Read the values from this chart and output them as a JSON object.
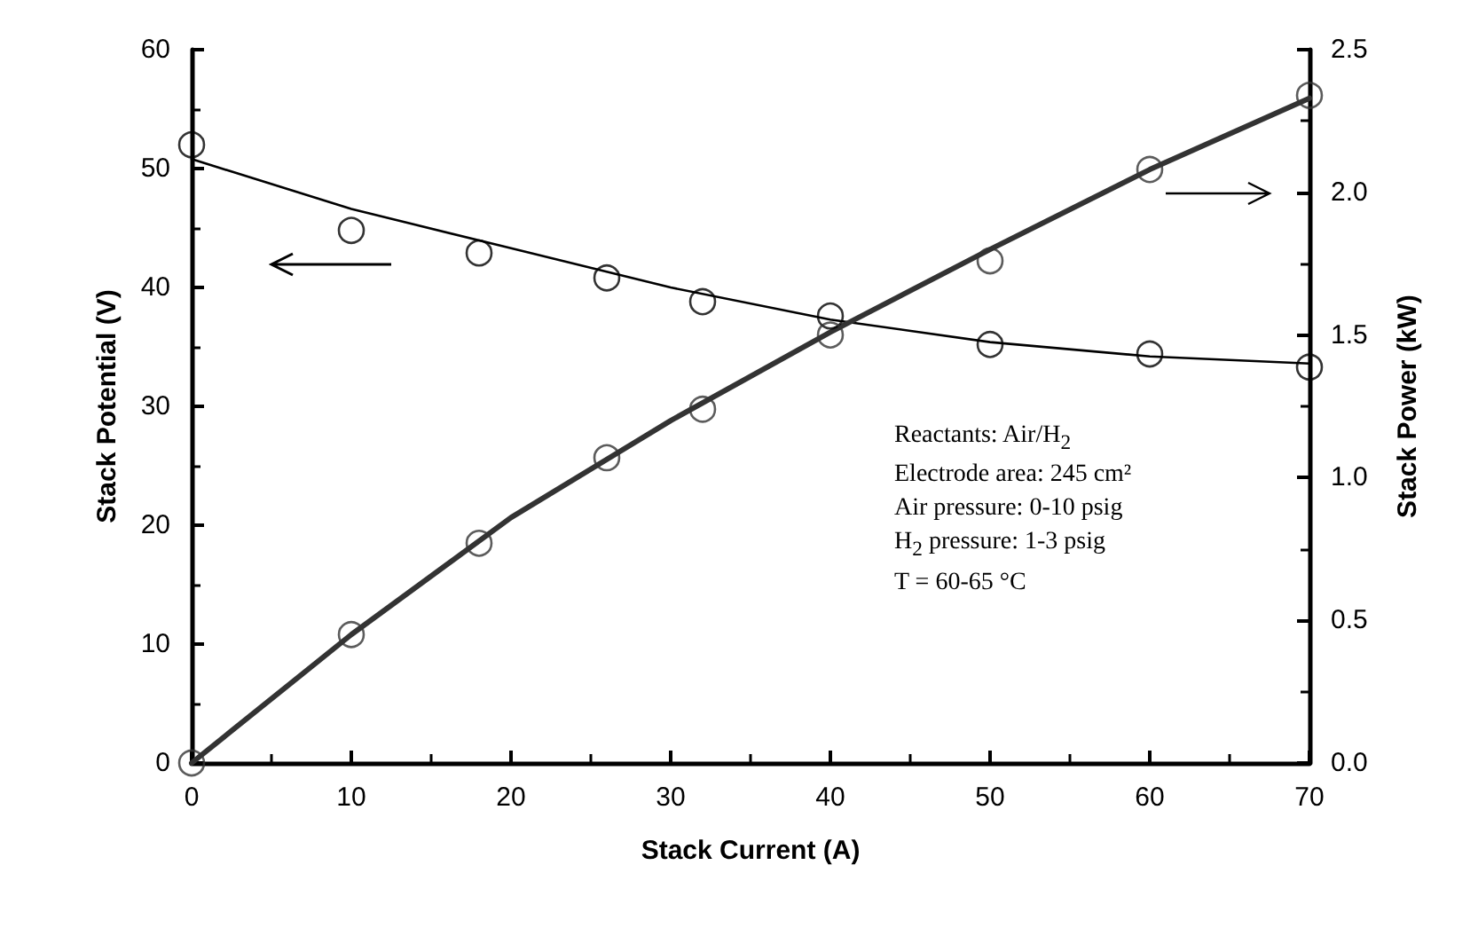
{
  "chart_data": {
    "type": "scatter",
    "xlabel": "Stack Current (A)",
    "ylabel": "Stack Potential (V)",
    "y2label": "Stack Power (kW)",
    "xlim": [
      0,
      70
    ],
    "xticks": [
      0,
      10,
      20,
      30,
      40,
      50,
      60,
      70
    ],
    "ylim": [
      0,
      60
    ],
    "yticks": [
      0,
      10,
      20,
      30,
      40,
      50,
      60
    ],
    "y2lim": [
      0,
      2.5
    ],
    "y2ticks": [
      {
        "value": 0,
        "label": "0.0"
      },
      {
        "value": 0.5,
        "label": "0.5"
      },
      {
        "value": 1,
        "label": "1.0"
      },
      {
        "value": 1.5,
        "label": "1.5"
      },
      {
        "value": 2,
        "label": "2.0"
      },
      {
        "value": 2.5,
        "label": "2.5"
      }
    ],
    "grid": false,
    "series": [
      {
        "marker": "circle",
        "color": "#000000",
        "x": [
          0,
          10,
          18,
          26,
          32,
          40,
          50,
          60,
          70
        ],
        "values": [
          52.0,
          44.8,
          42.9,
          40.8,
          38.8,
          37.6,
          35.2,
          34.4,
          33.3
        ]
      },
      {
        "type": "line",
        "marker": "none",
        "line_style": "solid",
        "color": "#000000",
        "x": [
          0,
          10,
          20,
          30,
          40,
          50,
          60,
          70
        ],
        "values": [
          50.8,
          46.6,
          43.3,
          40.0,
          37.3,
          35.4,
          34.2,
          33.6
        ]
      },
      {
        "axis": "y2",
        "marker": "circle",
        "color": "#333333",
        "x": [
          0,
          10,
          18,
          26,
          32,
          40,
          50,
          60,
          70
        ],
        "values": [
          0,
          0.45,
          0.77,
          1.07,
          1.24,
          1.5,
          1.76,
          2.08,
          2.34
        ]
      },
      {
        "type": "line",
        "axis": "y2",
        "marker": "none",
        "line_style": "solid",
        "color": "#333333",
        "x": [
          0,
          10,
          20,
          30,
          40,
          50,
          60,
          70
        ],
        "values": [
          0,
          0.45,
          0.86,
          1.2,
          1.51,
          1.8,
          2.08,
          2.33
        ]
      }
    ],
    "annotations": [
      "Reactants:  Air/H$_{2}$",
      "Electrode area: 245 cm²",
      "Air pressure: 0-10 psig",
      "H$_{2}$ pressure: 1-3 psig",
      "T = 60-65 °C"
    ]
  }
}
